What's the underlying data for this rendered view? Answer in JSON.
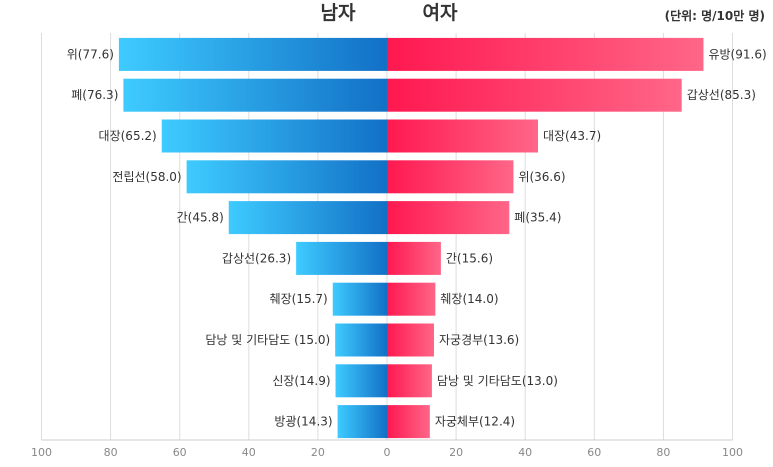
{
  "chart_data": {
    "type": "bar",
    "orientation": "horizontal-butterfly",
    "title_left": "남자",
    "title_right": "여자",
    "unit_label": "(단위: 명/10만 명)",
    "xlim": [
      -100,
      100
    ],
    "ticks": [
      100,
      80,
      60,
      40,
      20,
      0,
      20,
      40,
      60,
      80,
      100
    ],
    "colors": {
      "male_light": "#3ecbff",
      "male_dark": "#1270c6",
      "female_dark": "#ff1850",
      "female_light": "#ff6688",
      "grid": "#dddddd"
    },
    "series": [
      {
        "name": "남자",
        "labels": [
          "위(77.6)",
          "폐(76.3)",
          "대장(65.2)",
          "전립선(58.0)",
          "간(45.8)",
          "갑상선(26.3)",
          "췌장(15.7)",
          "담낭 및 기타담도 (15.0)",
          "신장(14.9)",
          "방광(14.3)"
        ],
        "values": [
          77.6,
          76.3,
          65.2,
          58.0,
          45.8,
          26.3,
          15.7,
          15.0,
          14.9,
          14.3
        ]
      },
      {
        "name": "여자",
        "labels": [
          "유방(91.6)",
          "갑상선(85.3)",
          "대장(43.7)",
          "위(36.6)",
          "폐(35.4)",
          "간(15.6)",
          "췌장(14.0)",
          "자궁경부(13.6)",
          "담낭 및 기타담도(13.0)",
          "자궁체부(12.4)"
        ],
        "values": [
          91.6,
          85.3,
          43.7,
          36.6,
          35.4,
          15.6,
          14.0,
          13.6,
          13.0,
          12.4
        ]
      }
    ]
  }
}
